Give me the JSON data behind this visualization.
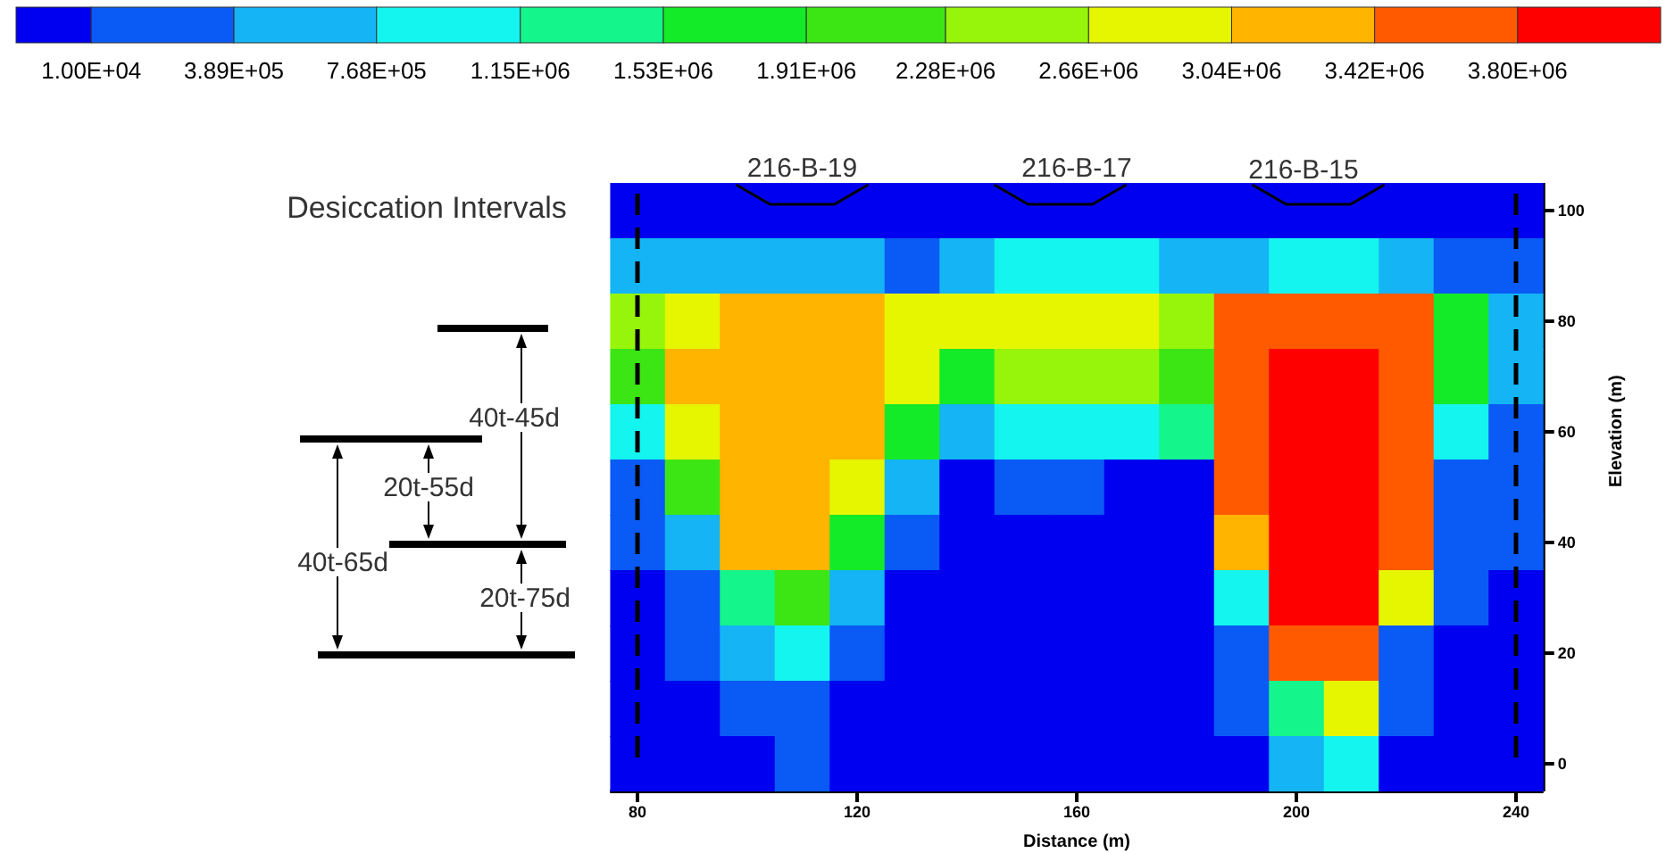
{
  "chart_data": {
    "type": "heatmap",
    "xlabel": "Distance (m)",
    "ylabel": "Elevation (m)",
    "categories": [
      "80",
      null,
      null,
      null,
      "120",
      null,
      null,
      null,
      "160",
      null,
      null,
      null,
      "200",
      null,
      null,
      null,
      "240"
    ],
    "y_categories": [
      "100",
      null,
      "80",
      null,
      "60",
      null,
      "40",
      null,
      "20",
      null,
      "0"
    ],
    "clim": [
      -190000,
      4180000
    ],
    "cticks": [
      {
        "value": 10000,
        "label": "1.00E+04"
      },
      {
        "value": 389000,
        "label": "3.89E+05"
      },
      {
        "value": 768000,
        "label": "7.68E+05"
      },
      {
        "value": 1150000,
        "label": "1.15E+06"
      },
      {
        "value": 1530000,
        "label": "1.53E+06"
      },
      {
        "value": 1910000,
        "label": "1.91E+06"
      },
      {
        "value": 2280000,
        "label": "2.28E+06"
      },
      {
        "value": 2660000,
        "label": "2.66E+06"
      },
      {
        "value": 3040000,
        "label": "3.04E+06"
      },
      {
        "value": 3420000,
        "label": "3.42E+06"
      },
      {
        "value": 3800000,
        "label": "3.80E+06"
      }
    ],
    "colors": [
      "#0000f0",
      "#0a5af5",
      "#14b4f5",
      "#14f5f0",
      "#14f58c",
      "#14eb28",
      "#3ce614",
      "#96f50a",
      "#e6f500",
      "#ffb400",
      "#ff5a00",
      "#ff0000"
    ],
    "cells": [
      [
        0,
        0,
        0,
        0,
        0,
        0,
        0,
        0,
        0,
        0,
        0,
        0,
        0,
        0,
        0,
        0,
        0
      ],
      [
        580000,
        580000,
        580000,
        580000,
        580000,
        200000,
        580000,
        960000,
        960000,
        960000,
        580000,
        580000,
        960000,
        960000,
        580000,
        200000,
        200000
      ],
      [
        2470000,
        2850000,
        3230000,
        3230000,
        3230000,
        2850000,
        2850000,
        2850000,
        2850000,
        2850000,
        2470000,
        3610000,
        3610000,
        3610000,
        3610000,
        1720000,
        580000
      ],
      [
        2100000,
        3230000,
        3230000,
        3230000,
        3230000,
        2850000,
        1720000,
        2470000,
        2470000,
        2470000,
        2100000,
        3610000,
        3990000,
        3990000,
        3610000,
        1720000,
        580000
      ],
      [
        960000,
        2850000,
        3230000,
        3230000,
        3230000,
        1720000,
        580000,
        960000,
        960000,
        960000,
        1340000,
        3610000,
        3990000,
        3990000,
        3610000,
        960000,
        200000
      ],
      [
        200000,
        2100000,
        3230000,
        3230000,
        2850000,
        580000,
        0,
        200000,
        200000,
        0,
        0,
        3610000,
        3990000,
        3990000,
        3610000,
        200000,
        200000
      ],
      [
        200000,
        580000,
        3230000,
        3230000,
        1720000,
        200000,
        0,
        0,
        0,
        0,
        0,
        3230000,
        3990000,
        3990000,
        3610000,
        200000,
        200000
      ],
      [
        0,
        200000,
        1340000,
        2100000,
        580000,
        0,
        0,
        0,
        0,
        0,
        0,
        960000,
        3990000,
        3990000,
        2850000,
        200000,
        0
      ],
      [
        0,
        200000,
        580000,
        960000,
        200000,
        0,
        0,
        0,
        0,
        0,
        0,
        200000,
        3610000,
        3610000,
        200000,
        0,
        0
      ],
      [
        0,
        0,
        200000,
        200000,
        0,
        0,
        0,
        0,
        0,
        0,
        0,
        200000,
        1340000,
        2850000,
        200000,
        0,
        0
      ],
      [
        0,
        0,
        0,
        200000,
        0,
        0,
        0,
        0,
        0,
        0,
        0,
        0,
        580000,
        960000,
        0,
        0,
        0
      ]
    ],
    "annotations": [
      "Desiccation Intervals",
      "40t-45d",
      "20t-55d",
      "40t-65d",
      "20t-75d",
      "216-B-19",
      "216-B-17",
      "216-B-15"
    ]
  }
}
